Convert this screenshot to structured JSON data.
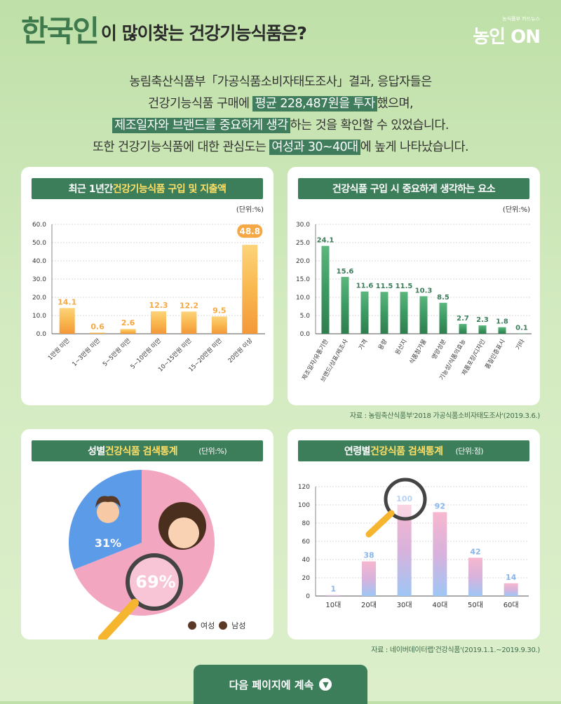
{
  "header": {
    "title_big": "한국인",
    "title_rest": "이 많이찾는 건강기능식품은?",
    "logo": "농인 ON",
    "logo_small": "농식품부 카드뉴스"
  },
  "intro": {
    "l1": "농림축산식품부「가공식품소비자태도조사」결과, 응답자들은",
    "l2a": "건강기능식품 구매에 ",
    "l2b": "평균 228,487원을 투자",
    "l2c": "했으며,",
    "l3a": "제조일자와 브랜드를 중요하게 생각",
    "l3b": "하는 것을 확인할 수 있었습니다.",
    "l4a": "또한 건강기능식품에 대한 관심도는 ",
    "l4b": "여성과 30~40대",
    "l4c": "에 높게 나타났습니다."
  },
  "panels": {
    "p1": {
      "title_a": "최근 1년간 ",
      "title_b": "건강기능식품 구입 및 지출액",
      "unit": "(단위:%)"
    },
    "p2": {
      "title": "건강식품 구입 시 중요하게 생각하는 요소",
      "unit": "(단위:%)"
    },
    "p3": {
      "title_a": "성별 ",
      "title_b": "건강식품 검색통계",
      "unit": "(단위:%)",
      "legend_female": "여성",
      "legend_male": "남성"
    },
    "p4": {
      "title_a": "연령별 ",
      "title_b": "건강식품 검색통계",
      "unit": "(단위:점)"
    }
  },
  "source1": "자료 : 농림축산식품부'2018 가공식품소비자태도조사'(2019.3.6.)",
  "source2": "자료 : 네이버데이터랩'건강식품'(2019.1.1.~2019.9.30.)",
  "next_label": "다음 페이지에 계속",
  "colors": {
    "green": "#3c7d5a",
    "orange": "#f5a843",
    "pink": "#f3a6bf",
    "blue": "#5b9be8"
  },
  "chart_data": [
    {
      "type": "bar",
      "categories": [
        "1만원 미만",
        "1~3만원 미만",
        "5~5만원 미만",
        "5~10만원 미만",
        "10~15만원 미만",
        "15~20만원 미만",
        "20만원 이상"
      ],
      "values": [
        14.1,
        0.6,
        2.6,
        12.3,
        12.2,
        9.5,
        48.8
      ],
      "ylim": [
        0,
        60
      ],
      "yticks": [
        "0.0",
        "10.0",
        "20.0",
        "30.0",
        "40.0",
        "50.0",
        "60.0"
      ]
    },
    {
      "type": "bar",
      "categories": [
        "제조일자/유통기한",
        "브랜드/상표/제조사",
        "가격",
        "용량",
        "원산지",
        "식품첨가물",
        "영양성분",
        "기능성/식품의효능",
        "제품포장/디자인",
        "품질인증표시",
        "기타"
      ],
      "values": [
        24.1,
        15.6,
        11.6,
        11.5,
        11.5,
        10.3,
        8.5,
        2.7,
        2.3,
        1.8,
        0.1
      ],
      "ylim": [
        0,
        30
      ],
      "yticks": [
        "0.0",
        "5.0",
        "10.0",
        "15.0",
        "20.0",
        "25.0",
        "30.0"
      ]
    },
    {
      "type": "pie",
      "categories": [
        "여성",
        "남성"
      ],
      "values": [
        69,
        31
      ],
      "labels": [
        "69%",
        "31%"
      ]
    },
    {
      "type": "bar",
      "categories": [
        "10대",
        "20대",
        "30대",
        "40대",
        "50대",
        "60대"
      ],
      "values": [
        1,
        38,
        100,
        92,
        42,
        14
      ],
      "ylim": [
        0,
        120
      ],
      "yticks": [
        "0",
        "20",
        "40",
        "60",
        "80",
        "100",
        "120"
      ]
    }
  ]
}
